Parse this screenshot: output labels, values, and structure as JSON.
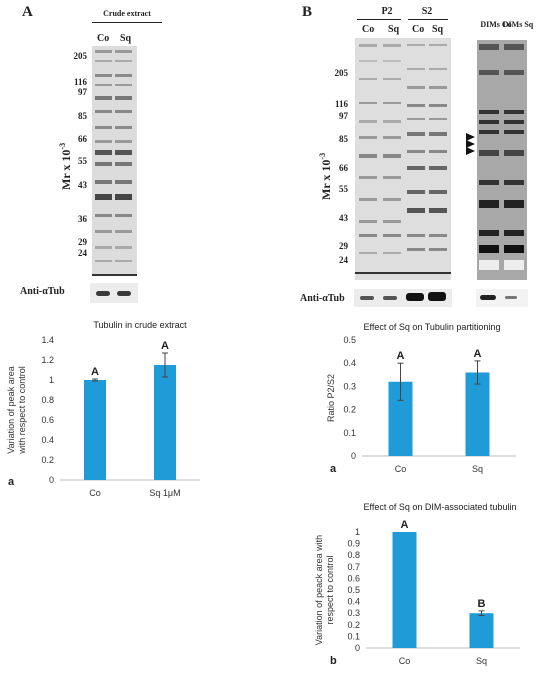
{
  "panel_a": {
    "letter": "A",
    "header": "Crude extract",
    "lanes": [
      "Co",
      "Sq"
    ],
    "mw_markers": [
      "205",
      "116",
      "97",
      "85",
      "66",
      "55",
      "43",
      "36",
      "29",
      "24"
    ],
    "y_axis_label": "Mr x 10",
    "y_axis_exp": "-3",
    "blot_label": "Anti-αTub"
  },
  "panel_b": {
    "letter": "B",
    "groups": [
      {
        "header": "P2",
        "lanes": [
          "Co",
          "Sq"
        ]
      },
      {
        "header": "S2",
        "lanes": [
          "Co",
          "Sq"
        ]
      }
    ],
    "dims_lanes": [
      "DIMs Co",
      "DIMs Sq"
    ],
    "mw_markers": [
      "205",
      "116",
      "97",
      "85",
      "66",
      "55",
      "43",
      "29",
      "24"
    ],
    "y_axis_label": "Mr x 10",
    "y_axis_exp": "-3",
    "blot_label": "Anti-αTub",
    "arrow_count": 3
  },
  "chart_data": [
    {
      "id": "tubulin-crude",
      "type": "bar",
      "sublabel": "a",
      "title": "Tubulin in crude extract",
      "ylabel_lines": [
        "Variation of peak area",
        "with respect to control"
      ],
      "categories": [
        "Co",
        "Sq 1μM"
      ],
      "values": [
        1.0,
        1.15
      ],
      "errors": [
        0.01,
        0.12
      ],
      "letters": [
        "A",
        "A"
      ],
      "ylim": [
        0,
        1.4
      ],
      "yticks": [
        0,
        0.2,
        0.4,
        0.6,
        0.8,
        1,
        1.2,
        1.4
      ],
      "color": "#1f9bd8"
    },
    {
      "id": "tubulin-partition",
      "type": "bar",
      "sublabel": "a",
      "title": "Effect of Sq on Tubulin partitioning",
      "ylabel_lines": [
        "Ratio P2/S2"
      ],
      "categories": [
        "Co",
        "Sq"
      ],
      "values": [
        0.32,
        0.36
      ],
      "errors": [
        0.08,
        0.05
      ],
      "letters": [
        "A",
        "A"
      ],
      "ylim": [
        0,
        0.5
      ],
      "yticks": [
        0,
        0.1,
        0.2,
        0.3,
        0.4,
        0.5
      ],
      "color": "#1f9bd8"
    },
    {
      "id": "dim-tubulin",
      "type": "bar",
      "sublabel": "b",
      "title": "Effect of Sq on DIM-associated tubulin",
      "ylabel_lines": [
        "Variation of peack area with",
        "respect to control"
      ],
      "categories": [
        "Co",
        "Sq"
      ],
      "values": [
        1.0,
        0.3
      ],
      "errors": [
        0.0,
        0.02
      ],
      "letters": [
        "A",
        "B"
      ],
      "ylim": [
        0,
        1
      ],
      "yticks": [
        0,
        0.1,
        0.2,
        0.3,
        0.4,
        0.5,
        0.6,
        0.7,
        0.8,
        0.9,
        1
      ],
      "color": "#1f9bd8"
    }
  ]
}
